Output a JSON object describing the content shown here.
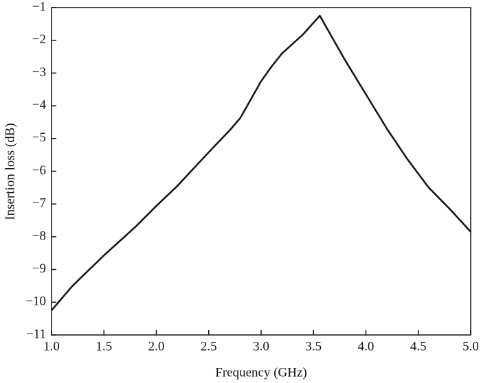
{
  "chart_data": {
    "type": "line",
    "x_label": "Frequency (GHz)",
    "y_label": "Insertion loss (dB)",
    "x": [
      1.0,
      1.2,
      1.5,
      1.8,
      2.0,
      2.2,
      2.5,
      2.7,
      2.8,
      3.0,
      3.1,
      3.2,
      3.4,
      3.56,
      3.8,
      4.0,
      4.2,
      4.4,
      4.6,
      4.8,
      5.0
    ],
    "series": [
      {
        "name": "Insertion loss",
        "color": "#111111",
        "values": [
          -10.25,
          -9.5,
          -8.57,
          -7.7,
          -7.06,
          -6.45,
          -5.42,
          -4.75,
          -4.38,
          -3.25,
          -2.8,
          -2.4,
          -1.82,
          -1.25,
          -2.6,
          -3.65,
          -4.7,
          -5.65,
          -6.5,
          -7.15,
          -7.85
        ]
      }
    ],
    "xlim": [
      1.0,
      5.0
    ],
    "xticks": [
      {
        "value": 1.0,
        "label": "1.0"
      },
      1.5,
      {
        "value": 2.0,
        "label": "2.0"
      },
      2.5,
      {
        "value": 3.0,
        "label": "3.0"
      },
      3.5,
      {
        "value": 4.0,
        "label": "4.0"
      },
      4.5,
      {
        "value": 5.0,
        "label": "5.0"
      }
    ],
    "ylim": [
      -11,
      -1
    ],
    "yticks": [
      {
        "value": -11,
        "label": "−11"
      },
      {
        "value": -10,
        "label": "−10"
      },
      {
        "value": -9,
        "label": "−9"
      },
      {
        "value": -8,
        "label": "−8"
      },
      {
        "value": -7,
        "label": "−7"
      },
      {
        "value": -6,
        "label": "−6"
      },
      {
        "value": -5,
        "label": "−5"
      },
      {
        "value": -4,
        "label": "−4"
      },
      {
        "value": -3,
        "label": "−3"
      },
      {
        "value": -2,
        "label": "−2"
      },
      {
        "value": -1,
        "label": "−1"
      }
    ],
    "grid": false
  }
}
